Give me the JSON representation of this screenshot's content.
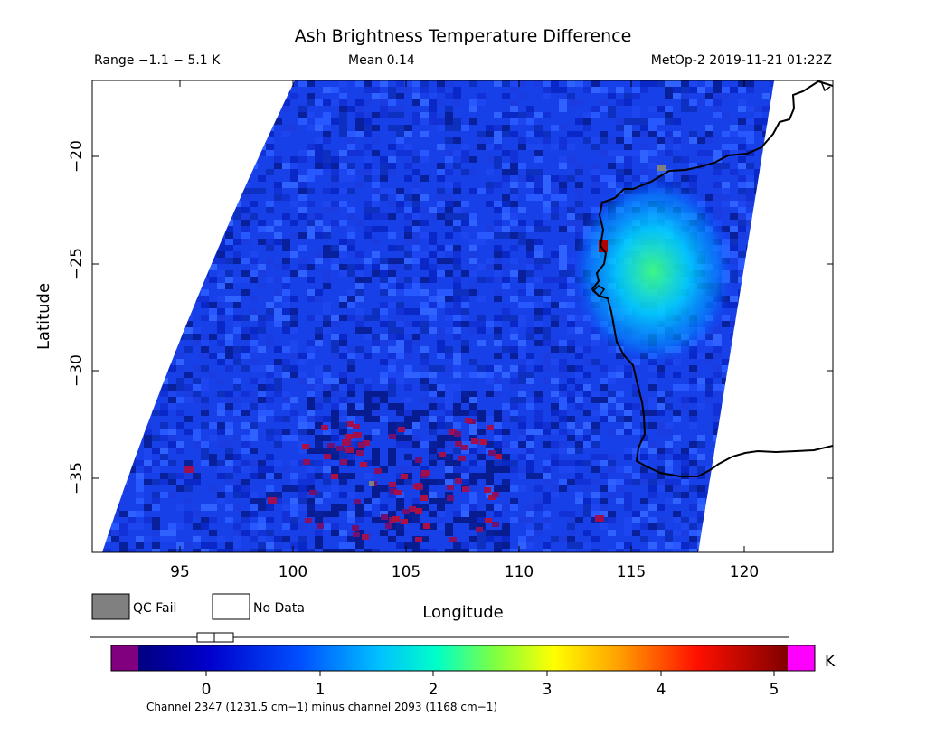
{
  "title": "Ash Brightness Temperature Difference",
  "header": {
    "range": "Range −1.1 − 5.1 K",
    "mean": "Mean 0.14",
    "source": "MetOp-2 2019-11-21 01:22Z"
  },
  "map": {
    "lon_range": [
      91.3,
      124.0
    ],
    "lat_range": [
      -38.3,
      -16.2
    ],
    "x_axis": {
      "label": "Longitude",
      "ticks": [
        "95",
        "100",
        "105",
        "110",
        "115",
        "120"
      ]
    },
    "y_axis": {
      "label": "Latitude",
      "ticks": [
        "−20",
        "−25",
        "−30",
        "−35"
      ]
    },
    "ash_plume": {
      "center_lon": 116.3,
      "center_lat": -25.8,
      "peak_value_K": 2.6
    },
    "background_value_K": 0.4,
    "coastline": "Western Australia"
  },
  "legend": {
    "qc_fail": "QC Fail",
    "no_data": "No Data",
    "qc_fail_color": "#808080",
    "no_data_color": "#ffffff"
  },
  "colorbar": {
    "ticks": [
      "0",
      "1",
      "2",
      "3",
      "4",
      "5"
    ],
    "unit": "K",
    "range": [
      -0.6,
      5.3
    ],
    "caption": "Channel 2347 (1231.5 cm−1) minus channel 2093 (1168 cm−1)",
    "underflow_color": "#800080",
    "overflow_color": "#ff00ff"
  }
}
